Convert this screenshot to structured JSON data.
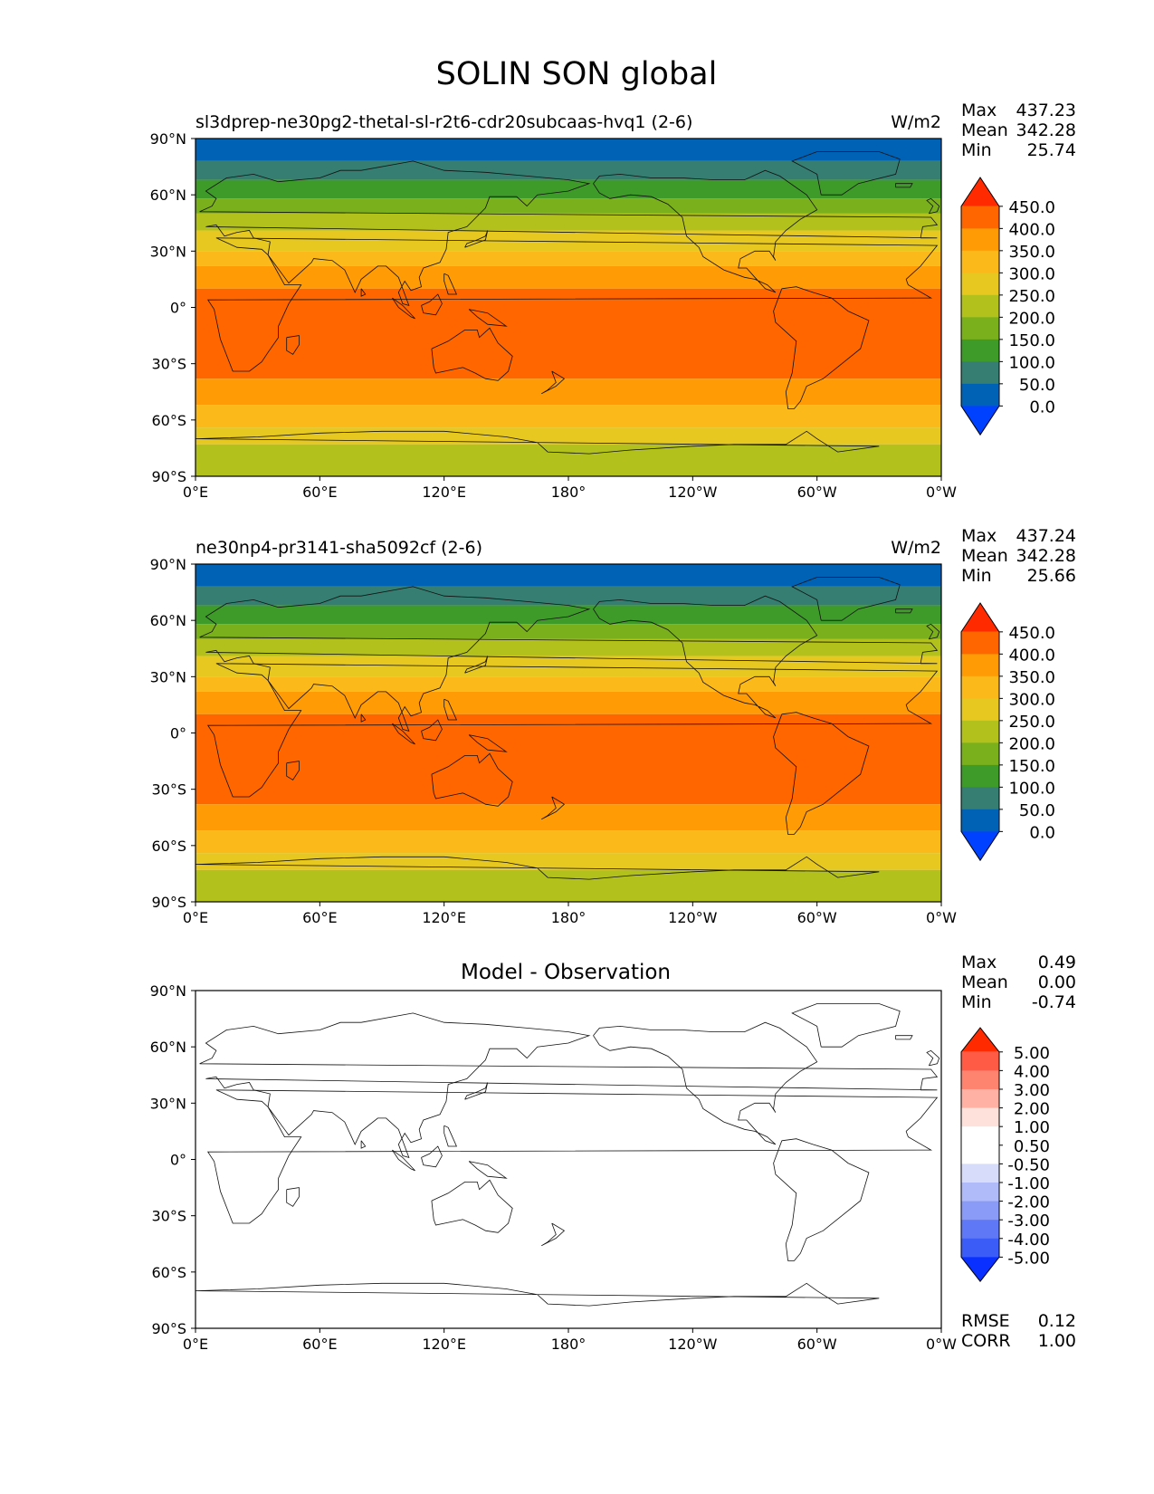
{
  "title": "SOLIN SON global",
  "x_ticks": [
    "0°E",
    "60°E",
    "120°E",
    "180°",
    "120°W",
    "60°W",
    "0°W"
  ],
  "y_ticks": [
    "90°N",
    "60°N",
    "30°N",
    "0°",
    "30°S",
    "60°S",
    "90°S"
  ],
  "panels": [
    {
      "title": "sl3dprep-ne30pg2-thetal-sl-r2t6-cdr20subcaas-hvq1 (2-6)",
      "units": "W/m2",
      "stats": [
        {
          "label": "Max",
          "value": "437.23"
        },
        {
          "label": "Mean",
          "value": "342.28"
        },
        {
          "label": "Min",
          "value": "25.74"
        }
      ],
      "colorbar_labels": [
        "450.0",
        "400.0",
        "350.0",
        "300.0",
        "250.0",
        "200.0",
        "150.0",
        "100.0",
        "50.0",
        "0.0"
      ]
    },
    {
      "title": "ne30np4-pr3141-sha5092cf (2-6)",
      "units": "W/m2",
      "stats": [
        {
          "label": "Max",
          "value": "437.24"
        },
        {
          "label": "Mean",
          "value": "342.28"
        },
        {
          "label": "Min",
          "value": "25.66"
        }
      ],
      "colorbar_labels": [
        "450.0",
        "400.0",
        "350.0",
        "300.0",
        "250.0",
        "200.0",
        "150.0",
        "100.0",
        "50.0",
        "0.0"
      ]
    },
    {
      "title": "Model - Observation",
      "units": "",
      "stats": [
        {
          "label": "Max",
          "value": "0.49"
        },
        {
          "label": "Mean",
          "value": "0.00"
        },
        {
          "label": "Min",
          "value": "-0.74"
        }
      ],
      "colorbar_labels": [
        "5.00",
        "4.00",
        "3.00",
        "2.00",
        "1.00",
        "0.50",
        "-0.50",
        "-1.00",
        "-2.00",
        "-3.00",
        "-4.00",
        "-5.00"
      ],
      "metrics": [
        {
          "label": "RMSE",
          "value": "0.12"
        },
        {
          "label": "CORR",
          "value": "1.00"
        }
      ]
    }
  ],
  "colors": {
    "solin_bar": [
      "#ff2a00",
      "#ff6600",
      "#ff9b05",
      "#fcb91a",
      "#e6c821",
      "#b2c11c",
      "#7bb01d",
      "#3f9b29",
      "#357e71",
      "#0062b4",
      "#0041ff"
    ],
    "diff_bar": [
      "#ff2a00",
      "#ff5b45",
      "#ff8470",
      "#ffb2a3",
      "#ffe1dc",
      "#ffffff",
      "#ffffff",
      "#d7dcfb",
      "#b0bbf9",
      "#8a9bf7",
      "#5f79f6",
      "#3b5cf6",
      "#0a30ff"
    ]
  }
}
